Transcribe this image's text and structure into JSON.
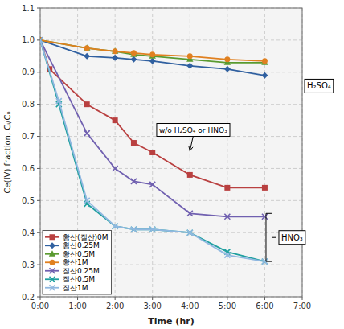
{
  "chart_data": {
    "type": "line",
    "xlabel": "Time (hr)",
    "ylabel": "Ce(IV) fraction, Cᵢ/C₀",
    "xlim": [
      0,
      420
    ],
    "xticks": [
      {
        "value": 0,
        "label": "0:00"
      },
      {
        "value": 60,
        "label": "1:00"
      },
      {
        "value": 120,
        "label": "2:00"
      },
      {
        "value": 180,
        "label": "3:00"
      },
      {
        "value": 240,
        "label": "4:00"
      },
      {
        "value": 300,
        "label": "5:00"
      },
      {
        "value": 360,
        "label": "6:00"
      },
      {
        "value": 420,
        "label": "7:00"
      }
    ],
    "ylim": [
      0.2,
      1.1
    ],
    "yticks": [
      0.2,
      0.3,
      0.4,
      0.5,
      0.6,
      0.7,
      0.8,
      0.9,
      {
        "value": 1.0,
        "label": "1.0"
      },
      1.1
    ],
    "grid": true,
    "legend": "lower left",
    "series": [
      {
        "name": "황산(질산)0M",
        "color": "#b94040",
        "marker": "square",
        "x": [
          0,
          15,
          75,
          120,
          150,
          180,
          240,
          300,
          360
        ],
        "values": [
          1.0,
          0.91,
          0.8,
          0.75,
          0.68,
          0.65,
          0.58,
          0.54,
          0.54
        ]
      },
      {
        "name": "황산0.25M",
        "color": "#3060a0",
        "marker": "diamond",
        "x": [
          0,
          75,
          120,
          150,
          180,
          240,
          300,
          360
        ],
        "values": [
          1.0,
          0.95,
          0.945,
          0.94,
          0.935,
          0.92,
          0.91,
          0.89
        ]
      },
      {
        "name": "황산0.5M",
        "color": "#5a9a30",
        "marker": "triangle",
        "x": [
          0,
          75,
          120,
          150,
          180,
          240,
          300,
          360
        ],
        "values": [
          1.0,
          0.975,
          0.965,
          0.955,
          0.95,
          0.94,
          0.93,
          0.93
        ]
      },
      {
        "name": "황산1M",
        "color": "#e08020",
        "marker": "circle",
        "x": [
          0,
          75,
          120,
          150,
          180,
          240,
          300,
          360
        ],
        "values": [
          1.0,
          0.975,
          0.965,
          0.96,
          0.955,
          0.95,
          0.94,
          0.935
        ]
      },
      {
        "name": "질산0.25M",
        "color": "#7060b0",
        "marker": "x",
        "x": [
          0,
          75,
          120,
          150,
          180,
          240,
          300,
          360
        ],
        "values": [
          1.0,
          0.71,
          0.6,
          0.56,
          0.55,
          0.46,
          0.45,
          0.45
        ]
      },
      {
        "name": "질산0.5M",
        "color": "#20a0a0",
        "marker": "x",
        "x": [
          0,
          30,
          75,
          120,
          150,
          180,
          240,
          300,
          360
        ],
        "values": [
          1.0,
          0.8,
          0.49,
          0.42,
          0.41,
          0.41,
          0.4,
          0.34,
          0.31
        ]
      },
      {
        "name": "질산1M",
        "color": "#90b8e0",
        "marker": "x",
        "x": [
          0,
          30,
          75,
          120,
          150,
          180,
          240,
          300,
          360
        ],
        "values": [
          1.0,
          0.81,
          0.5,
          0.42,
          0.41,
          0.41,
          0.4,
          0.33,
          0.31
        ]
      }
    ],
    "annotations": [
      {
        "text": "H₂SO₄"
      },
      {
        "text": "w/o H₂SO₄ or HNO₃",
        "x": 240,
        "y": 0.655
      },
      {
        "text": "HNO₃",
        "x": 362,
        "y": [
          0.31,
          0.46
        ]
      }
    ]
  }
}
